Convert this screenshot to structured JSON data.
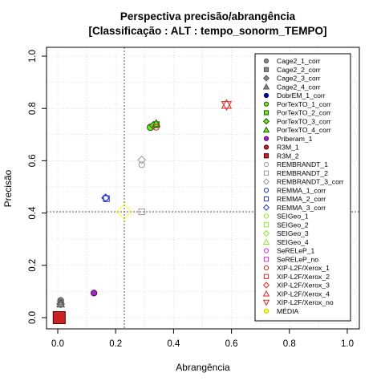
{
  "chart_data": {
    "type": "scatter",
    "title": "Perspectiva precisão/abrangência",
    "subtitle": "[Classificação : ALT : tempo_sonorm_TEMPO]",
    "xlabel": "Abrangência",
    "ylabel": "Precisão",
    "xlim": [
      0,
      1
    ],
    "ylim": [
      0,
      1
    ],
    "xticks": [
      "0.0",
      "0.2",
      "0.4",
      "0.6",
      "0.8",
      "1.0"
    ],
    "yticks": [
      "0.0",
      "0.2",
      "0.4",
      "0.6",
      "0.8",
      "1.0"
    ],
    "grid": true,
    "legend_position": "right",
    "reference_lines": {
      "vertical_x": 0.23,
      "horizontal_y": 0.405
    },
    "series": [
      {
        "name": "Cage2_1_corr",
        "shape": "circle",
        "color": "#555555",
        "fill": "#888888",
        "points": [
          [
            0.01,
            0.066
          ]
        ]
      },
      {
        "name": "Cage2_2_corr",
        "shape": "square",
        "color": "#555555",
        "fill": "#888888",
        "points": [
          [
            0.01,
            0.057
          ]
        ]
      },
      {
        "name": "Cage2_3_corr",
        "shape": "diamond",
        "color": "#555555",
        "fill": "#888888",
        "points": [
          [
            0.01,
            0.052
          ]
        ]
      },
      {
        "name": "Cage2_4_corr",
        "shape": "triangle",
        "color": "#555555",
        "fill": "#888888",
        "points": [
          [
            0.01,
            0.052
          ]
        ]
      },
      {
        "name": "DobrEM_1_corr",
        "shape": "circle",
        "color": "#000066",
        "fill": "#0000cc",
        "points": [
          [
            0.005,
            0.0
          ]
        ]
      },
      {
        "name": "PorTexTO_1_corr",
        "shape": "circle",
        "color": "#225500",
        "fill": "#66ee22",
        "points": [
          [
            0.32,
            0.728
          ]
        ]
      },
      {
        "name": "PorTexTO_2_corr",
        "shape": "square",
        "color": "#225500",
        "fill": "#66ee22",
        "points": [
          [
            0.34,
            0.738
          ]
        ]
      },
      {
        "name": "PorTexTO_3_corr",
        "shape": "diamond",
        "color": "#225500",
        "fill": "#66ee22",
        "points": [
          [
            0.33,
            0.735
          ]
        ]
      },
      {
        "name": "PorTexTO_4_corr",
        "shape": "triangle",
        "color": "#225500",
        "fill": "#66ee22",
        "points": [
          [
            0.34,
            0.742
          ]
        ]
      },
      {
        "name": "Priberam_1",
        "shape": "circle",
        "color": "#550066",
        "fill": "#aa22cc",
        "points": [
          [
            0.125,
            0.094
          ]
        ]
      },
      {
        "name": "R3M_1",
        "shape": "circle",
        "color": "#550000",
        "fill": "#cc2222",
        "points": [
          [
            0.005,
            0.0
          ]
        ]
      },
      {
        "name": "R3M_2",
        "shape": "square",
        "color": "#550000",
        "fill": "#cc2222",
        "points": [
          [
            0.005,
            0.0
          ]
        ]
      },
      {
        "name": "REMBRANDT_1",
        "shape": "circle",
        "color": "#999999",
        "fill": "none",
        "points": [
          [
            0.29,
            0.585
          ]
        ]
      },
      {
        "name": "REMBRANDT_2",
        "shape": "square",
        "color": "#999999",
        "fill": "none",
        "points": [
          [
            0.29,
            0.405
          ]
        ]
      },
      {
        "name": "REMBRANDT_3_corr",
        "shape": "diamond",
        "color": "#999999",
        "fill": "none",
        "points": [
          [
            0.29,
            0.603
          ]
        ]
      },
      {
        "name": "REMMA_1_corr",
        "shape": "circle",
        "color": "#2233dd",
        "fill": "none",
        "points": [
          [
            0.165,
            0.458
          ]
        ]
      },
      {
        "name": "REMMA_2_corr",
        "shape": "square",
        "color": "#2233dd",
        "fill": "none",
        "points": [
          [
            0.168,
            0.455
          ]
        ]
      },
      {
        "name": "REMMA_3_corr",
        "shape": "diamond",
        "color": "#2233dd",
        "fill": "none",
        "points": [
          [
            0.165,
            0.458
          ]
        ]
      },
      {
        "name": "SEIGeo_1",
        "shape": "circle",
        "color": "#88ee22",
        "fill": "none",
        "points": []
      },
      {
        "name": "SEIGeo_2",
        "shape": "square",
        "color": "#88ee22",
        "fill": "none",
        "points": []
      },
      {
        "name": "SEIGeo_3",
        "shape": "diamond",
        "color": "#88ee22",
        "fill": "none",
        "points": []
      },
      {
        "name": "SEIGeo_4",
        "shape": "triangle",
        "color": "#88ee22",
        "fill": "none",
        "points": []
      },
      {
        "name": "SeRELeP_1",
        "shape": "circle",
        "color": "#ee22ee",
        "fill": "none",
        "points": []
      },
      {
        "name": "SeRELeP_no",
        "shape": "square",
        "color": "#ee22ee",
        "fill": "none",
        "points": []
      },
      {
        "name": "XIP-L2F/Xerox_1",
        "shape": "circle",
        "color": "#ee2222",
        "fill": "none",
        "points": [
          [
            0.34,
            0.728
          ]
        ]
      },
      {
        "name": "XIP-L2F/Xerox_2",
        "shape": "square",
        "color": "#ee2222",
        "fill": "none",
        "points": [
          [
            0.7,
            0.782
          ]
        ]
      },
      {
        "name": "XIP-L2F/Xerox_3",
        "shape": "diamond",
        "color": "#ee2222",
        "fill": "none",
        "points": [
          [
            0.72,
            0.79
          ]
        ]
      },
      {
        "name": "XIP-L2F/Xerox_4",
        "shape": "triangle",
        "color": "#ee2222",
        "fill": "none",
        "points": [
          [
            0.583,
            0.815
          ]
        ]
      },
      {
        "name": "XIP-L2F/Xerox_no",
        "shape": "triangle-down",
        "color": "#ee2222",
        "fill": "none",
        "points": [
          [
            0.583,
            0.812
          ]
        ]
      },
      {
        "name": "MÉDIA",
        "shape": "diamond-big",
        "color": "#ffff22",
        "fill": "none",
        "points": [
          [
            0.23,
            0.405
          ]
        ]
      }
    ]
  }
}
